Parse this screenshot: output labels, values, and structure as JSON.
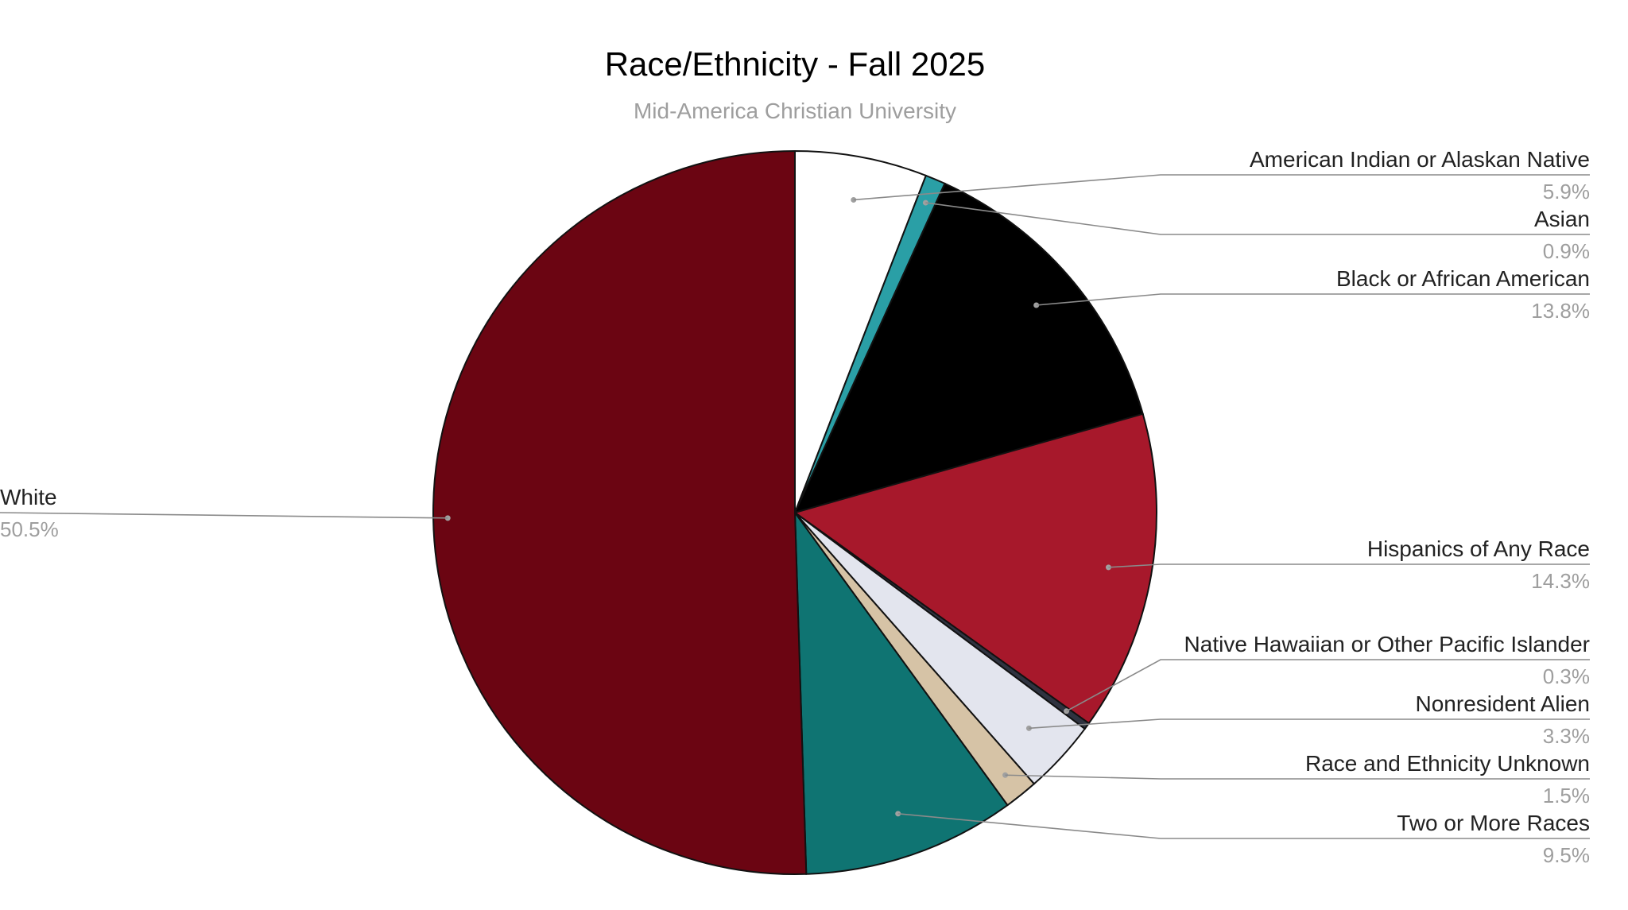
{
  "chart_data": {
    "type": "pie",
    "title": "Race/Ethnicity - Fall 2025",
    "subtitle": "Mid-America Christian University",
    "start_angle_deg": 0,
    "direction": "clockwise",
    "slices": [
      {
        "label": "American Indian or Alaskan Native",
        "value": 5.9,
        "value_label": "5.9%",
        "color": "#ffffff"
      },
      {
        "label": "Asian",
        "value": 0.9,
        "value_label": "0.9%",
        "color": "#2a9fa6"
      },
      {
        "label": "Black or African American",
        "value": 13.8,
        "value_label": "13.8%",
        "color": "#000000"
      },
      {
        "label": "Hispanics of Any Race",
        "value": 14.3,
        "value_label": "14.3%",
        "color": "#a7182b"
      },
      {
        "label": "Native Hawaiian or Other Pacific Islander",
        "value": 0.3,
        "value_label": "0.3%",
        "color": "#2f3340"
      },
      {
        "label": "Nonresident Alien",
        "value": 3.3,
        "value_label": "3.3%",
        "color": "#e3e5ee"
      },
      {
        "label": "Race and Ethnicity Unknown",
        "value": 1.5,
        "value_label": "1.5%",
        "color": "#d6c3a6"
      },
      {
        "label": "Two or More Races",
        "value": 9.5,
        "value_label": "9.5%",
        "color": "#0f7472"
      },
      {
        "label": "White",
        "value": 50.5,
        "value_label": "50.5%",
        "color": "#6b0512"
      }
    ],
    "legend": "none"
  }
}
